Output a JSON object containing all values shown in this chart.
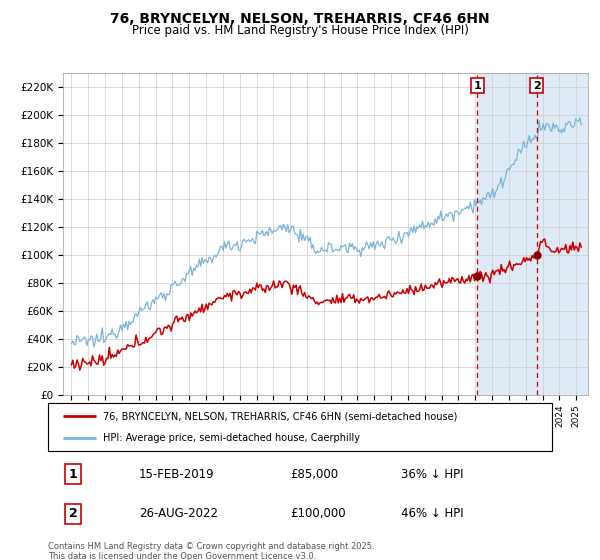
{
  "title": "76, BRYNCELYN, NELSON, TREHARRIS, CF46 6HN",
  "subtitle": "Price paid vs. HM Land Registry's House Price Index (HPI)",
  "hpi_label": "HPI: Average price, semi-detached house, Caerphilly",
  "property_label": "76, BRYNCELYN, NELSON, TREHARRIS, CF46 6HN (semi-detached house)",
  "hpi_color": "#7ab4d8",
  "property_color": "#cc0000",
  "marker_color": "#880000",
  "vline_color": "#cc0000",
  "shade_color": "#deeaf5",
  "annotation1": {
    "num": "1",
    "date": "15-FEB-2019",
    "price": "£85,000",
    "hpi": "36% ↓ HPI"
  },
  "annotation2": {
    "num": "2",
    "date": "26-AUG-2022",
    "price": "£100,000",
    "hpi": "46% ↓ HPI"
  },
  "xmin": 1994.5,
  "xmax": 2025.7,
  "ymin": 0,
  "ymax": 230000,
  "yticks": [
    0,
    20000,
    40000,
    60000,
    80000,
    100000,
    120000,
    140000,
    160000,
    180000,
    200000,
    220000
  ],
  "vline1_x": 2019.12,
  "vline2_x": 2022.65,
  "footer": "Contains HM Land Registry data © Crown copyright and database right 2025.\nThis data is licensed under the Open Government Licence v3.0."
}
